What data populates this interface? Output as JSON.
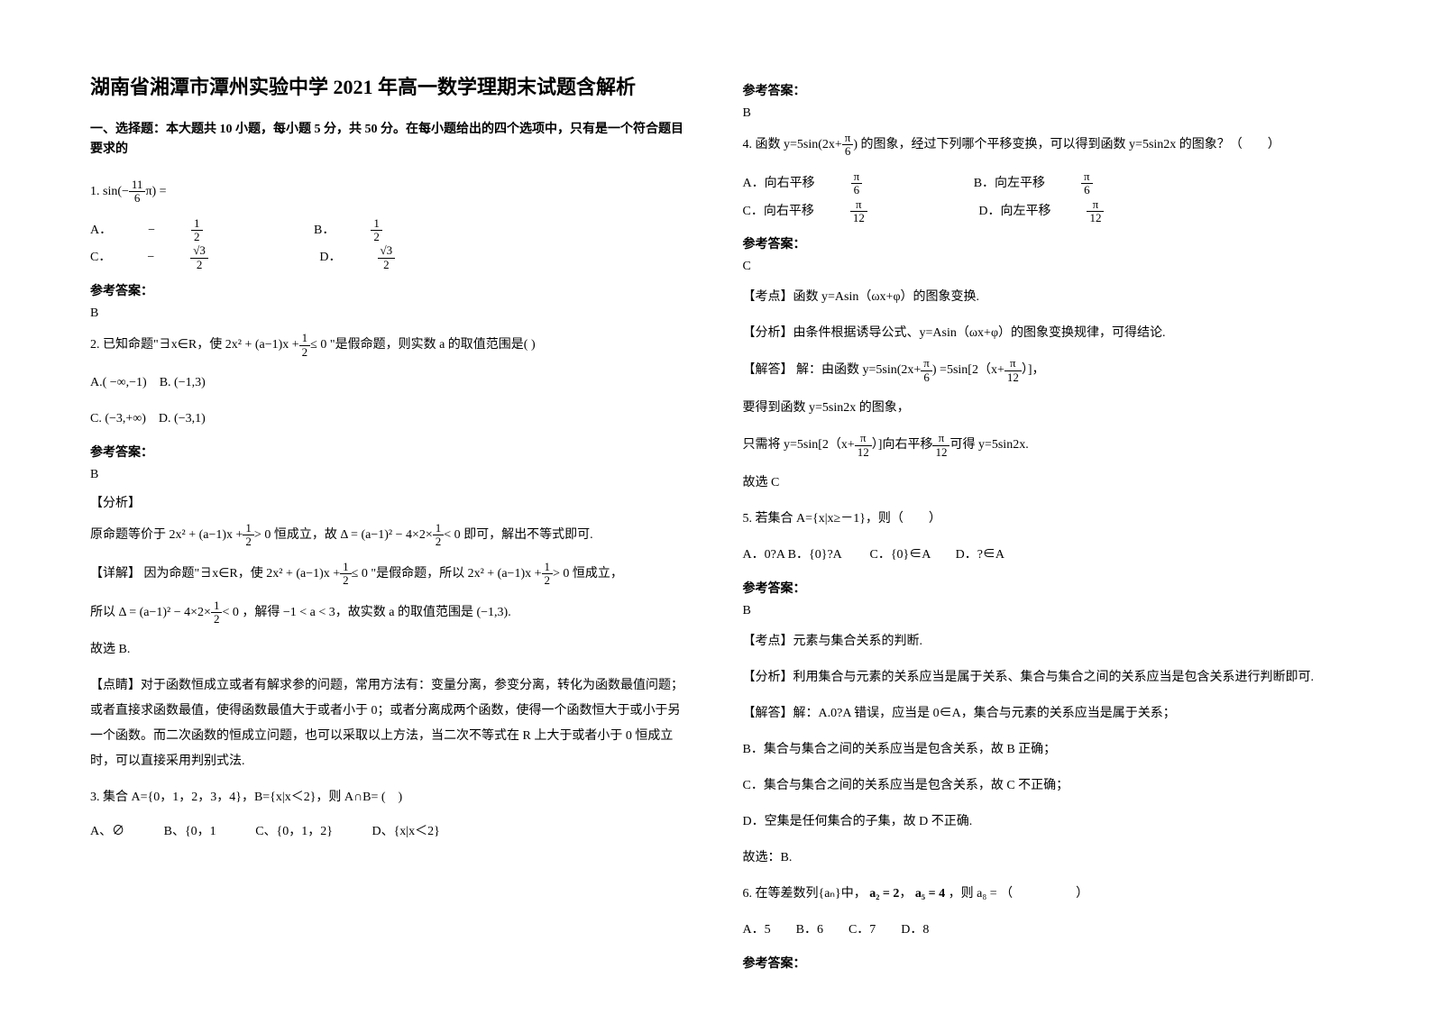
{
  "title": "湖南省湘潭市潭州实验中学 2021 年高一数学理期末试题含解析",
  "section1_intro": "一、选择题：本大题共 10 小题，每小题 5 分，共 50 分。在每小题给出的四个选项中，只有是一个符合题目要求的",
  "answer_label": "参考答案：",
  "analysis_label": "【分析】",
  "detail_label": "【详解】",
  "dianjing_label": "【点睛】",
  "kaodian_label": "【考点】",
  "jieda_label": "【解答】",
  "q1": {
    "stem_prefix": "1.",
    "expr_left": "sin(−",
    "frac_num": "11",
    "frac_den": "6",
    "expr_right": "π) =",
    "optA": "A．",
    "optA_val_prefix": "−",
    "optA_num": "1",
    "optA_den": "2",
    "optB": "B．",
    "optB_num": "1",
    "optB_den": "2",
    "optC": "C．",
    "optC_prefix": "−",
    "optC_num": "√3",
    "optC_den": "2",
    "optD": "D．",
    "optD_num": "√3",
    "optD_den": "2",
    "answer": "B"
  },
  "q2": {
    "stem1": "2. 已知命题\"∃x∈R，使",
    "expr_num": "1",
    "expr_den": "2",
    "expr_main": "2x² + (a−1)x +",
    "expr_tail": "≤ 0",
    "stem2": "\"是假命题，则实数 a 的取值范围是(  )",
    "optA": "A.( −∞,−1)　B. (−1,3)",
    "optC": "C. (−3,+∞)　D. (−3,1)",
    "answer": "B",
    "ana1_a": "原命题等价于",
    "ana1_b": "2x² + (a−1)x +",
    "ana1_num": "1",
    "ana1_den": "2",
    "ana1_c": "> 0",
    "ana1_d": "恒成立，故",
    "ana1_e": "Δ = (a−1)² − 4×2×",
    "ana1_num2": "1",
    "ana1_den2": "2",
    "ana1_f": "< 0",
    "ana1_g": "即可，解出不等式即可.",
    "ana2_a": "因为命题\"∃x∈R，使",
    "ana2_b": "2x² + (a−1)x +",
    "ana2_c": "≤ 0",
    "ana2_d": "\"是假命题，所以",
    "ana2_e": "2x² + (a−1)x +",
    "ana2_f": "> 0",
    "ana2_g": "恒成立，",
    "ana3_a": "所以",
    "ana3_b": "Δ = (a−1)² − 4×2×",
    "ana3_c": "< 0",
    "ana3_d": "，解得 −1 < a < 3，故实数 a 的取值范围是 (−1,3).",
    "ana4": "故选 B.",
    "dj": "对于函数恒成立或者有解求参的问题，常用方法有：变量分离，参变分离，转化为函数最值问题；或者直接求函数最值，使得函数最值大于或者小于 0；或者分离成两个函数，使得一个函数恒大于或小于另一个函数。而二次函数的恒成立问题，也可以采取以上方法，当二次不等式在 R 上大于或者小于 0 恒成立时，可以直接采用判别式法."
  },
  "q3": {
    "stem": "3. 集合 A={0，1，2，3，4}，B={x|x＜2}，则 A∩B= (　)",
    "optA": "A、∅",
    "optB": "B、{0，1",
    "optC": "C、{0，1，2}",
    "optD": "D、{x|x＜2}",
    "answer": "B"
  },
  "q4": {
    "stem1": "4. 函数",
    "expr_a": "y=5sin(2x+",
    "expr_num": "π",
    "expr_den": "6",
    "expr_b": ")",
    "stem2": "的图象，经过下列哪个平移变换，可以得到函数 y=5sin2x 的图象？（　　）",
    "optA": "A．向右平移",
    "optB": "B．向左平移",
    "optC": "C．向右平移",
    "optD": "D．向左平移",
    "opt_num6": "π",
    "opt_den6": "6",
    "opt_num12": "π",
    "opt_den12": "12",
    "answer": "C",
    "kd": "函数 y=Asin（ωx+φ）的图象变换.",
    "fx": "由条件根据诱导公式、y=Asin（ωx+φ）的图象变换规律，可得结论.",
    "jd1": "解：由函数",
    "jd_expr1": "y=5sin(2x+",
    "jd2": "=5sin[2（x+",
    "jd3": "）]，",
    "jd4": "要得到函数 y=5sin2x 的图象，",
    "jd5": "只需将 y=5sin[2（x+",
    "jd6": "）]向右平移",
    "jd7": "可得 y=5sin2x.",
    "jd8": "故选 C"
  },
  "q5": {
    "stem": "5. 若集合 A={x|x≥－1}，则（　　）",
    "opts": "A．0?A B．{0}?A 　　C．{0}∈A　　D．?∈A",
    "answer": "B",
    "kd": "元素与集合关系的判断.",
    "fx": "利用集合与元素的关系应当是属于关系、集合与集合之间的关系应当是包含关系进行判断即可.",
    "jd_a": "解：A.0?A 错误，应当是 0∈A，集合与元素的关系应当是属于关系；",
    "jd_b": "B．集合与集合之间的关系应当是包含关系，故 B 正确；",
    "jd_c": "C．集合与集合之间的关系应当是包含关系，故 C 不正确；",
    "jd_d": "D．空集是任何集合的子集，故 D 不正确.",
    "jd_e": "故选：B."
  },
  "q6": {
    "stem1": "6. 在等差数列{aₙ}中，",
    "a2": "a₂ = 2",
    "sep": "，",
    "a5": "a₅ = 4",
    "stem2": "，则 a₈ = （　　　　　）",
    "opts": "A．5　　B．6　　C．7　　D．8"
  }
}
